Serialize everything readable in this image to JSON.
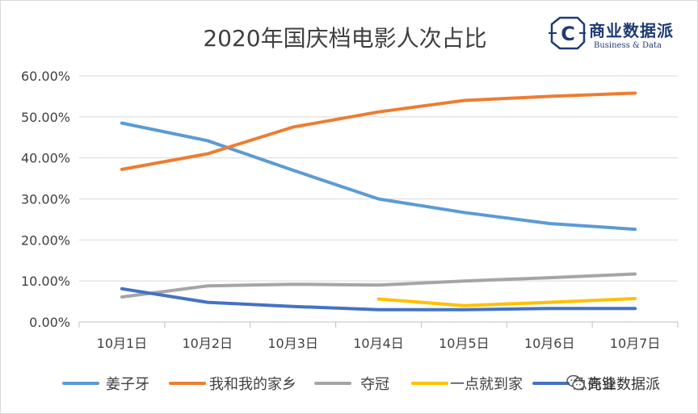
{
  "chart_data": {
    "type": "line",
    "title": "2020年国庆档电影人次占比",
    "categories": [
      "10月1日",
      "10月2日",
      "10月3日",
      "10月4日",
      "10月5日",
      "10月6日",
      "10月7日"
    ],
    "ylim": [
      0,
      60
    ],
    "ytick_labels": [
      "0.00%",
      "10.00%",
      "20.00%",
      "30.00%",
      "40.00%",
      "50.00%",
      "60.00%"
    ],
    "grid": true,
    "legend_position": "bottom",
    "series": [
      {
        "name": "姜子牙",
        "color": "#5b9bd5",
        "values": [
          48.5,
          44.2,
          37.0,
          30.0,
          26.7,
          24.0,
          22.6
        ]
      },
      {
        "name": "我和我的家乡",
        "color": "#ed7d31",
        "values": [
          37.2,
          41.0,
          47.5,
          51.2,
          54.0,
          55.0,
          55.8
        ]
      },
      {
        "name": "夺冠",
        "color": "#a5a5a5",
        "values": [
          6.1,
          8.8,
          9.2,
          9.0,
          10.0,
          10.8,
          11.7
        ]
      },
      {
        "name": "一点就到家",
        "color": "#ffc000",
        "values": [
          null,
          null,
          null,
          5.6,
          4.0,
          4.8,
          5.7
        ]
      },
      {
        "name": "急先锋",
        "color": "#4472c4",
        "values": [
          8.1,
          4.8,
          3.8,
          3.0,
          3.0,
          3.3,
          3.3
        ]
      }
    ]
  },
  "logo": {
    "icon": "c-hexagon-logo-icon",
    "letter": "C",
    "title": "商业数据派",
    "subtitle": "Business & Data",
    "color": "#1f3b73"
  },
  "watermark": {
    "icon": "wechat-icon",
    "text": "商业数据派"
  }
}
